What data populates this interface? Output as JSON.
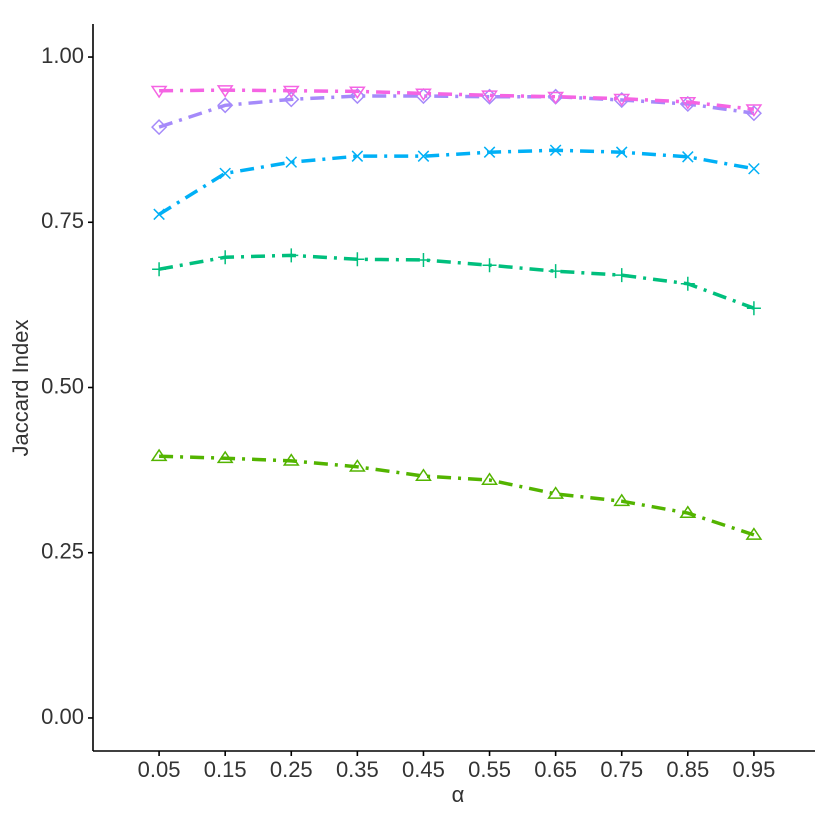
{
  "chart_data": {
    "type": "line",
    "x_label": "α",
    "y_label": "Jaccard Index",
    "x": [
      0.05,
      0.15,
      0.25,
      0.35,
      0.45,
      0.55,
      0.65,
      0.75,
      0.85,
      0.95
    ],
    "xlim": [
      -0.05,
      1.05
    ],
    "xticks": [
      0.05,
      0.15,
      0.25,
      0.35,
      0.45,
      0.55,
      0.65,
      0.75,
      0.85,
      0.95
    ],
    "ylim": [
      -0.05,
      1.05
    ],
    "yticks": [
      {
        "value": 0,
        "label": "0.00"
      },
      {
        "value": 0.25,
        "label": "0.25"
      },
      {
        "value": 0.5,
        "label": "0.50"
      },
      {
        "value": 0.75,
        "label": "0.75"
      },
      {
        "value": 1,
        "label": "1.00"
      }
    ],
    "grid": false,
    "line_style": "dashdot",
    "series": [
      {
        "color": "#f564e3",
        "marker": "triangle-down",
        "values": [
          0.949,
          0.95,
          0.949,
          0.948,
          0.945,
          0.942,
          0.94,
          0.937,
          0.932,
          0.921
        ]
      },
      {
        "color": "#a58afa",
        "marker": "diamond",
        "values": [
          0.894,
          0.927,
          0.936,
          0.941,
          0.941,
          0.94,
          0.94,
          0.935,
          0.929,
          0.915
        ]
      },
      {
        "color": "#00b0f6",
        "marker": "x",
        "values": [
          0.762,
          0.824,
          0.841,
          0.85,
          0.85,
          0.856,
          0.859,
          0.856,
          0.849,
          0.831
        ]
      },
      {
        "color": "#00bf7d",
        "marker": "plus",
        "values": [
          0.679,
          0.697,
          0.7,
          0.694,
          0.693,
          0.685,
          0.676,
          0.67,
          0.657,
          0.62
        ]
      },
      {
        "color": "#53b400",
        "marker": "triangle-up",
        "values": [
          0.396,
          0.393,
          0.389,
          0.38,
          0.366,
          0.36,
          0.339,
          0.328,
          0.31,
          0.277
        ]
      }
    ]
  }
}
